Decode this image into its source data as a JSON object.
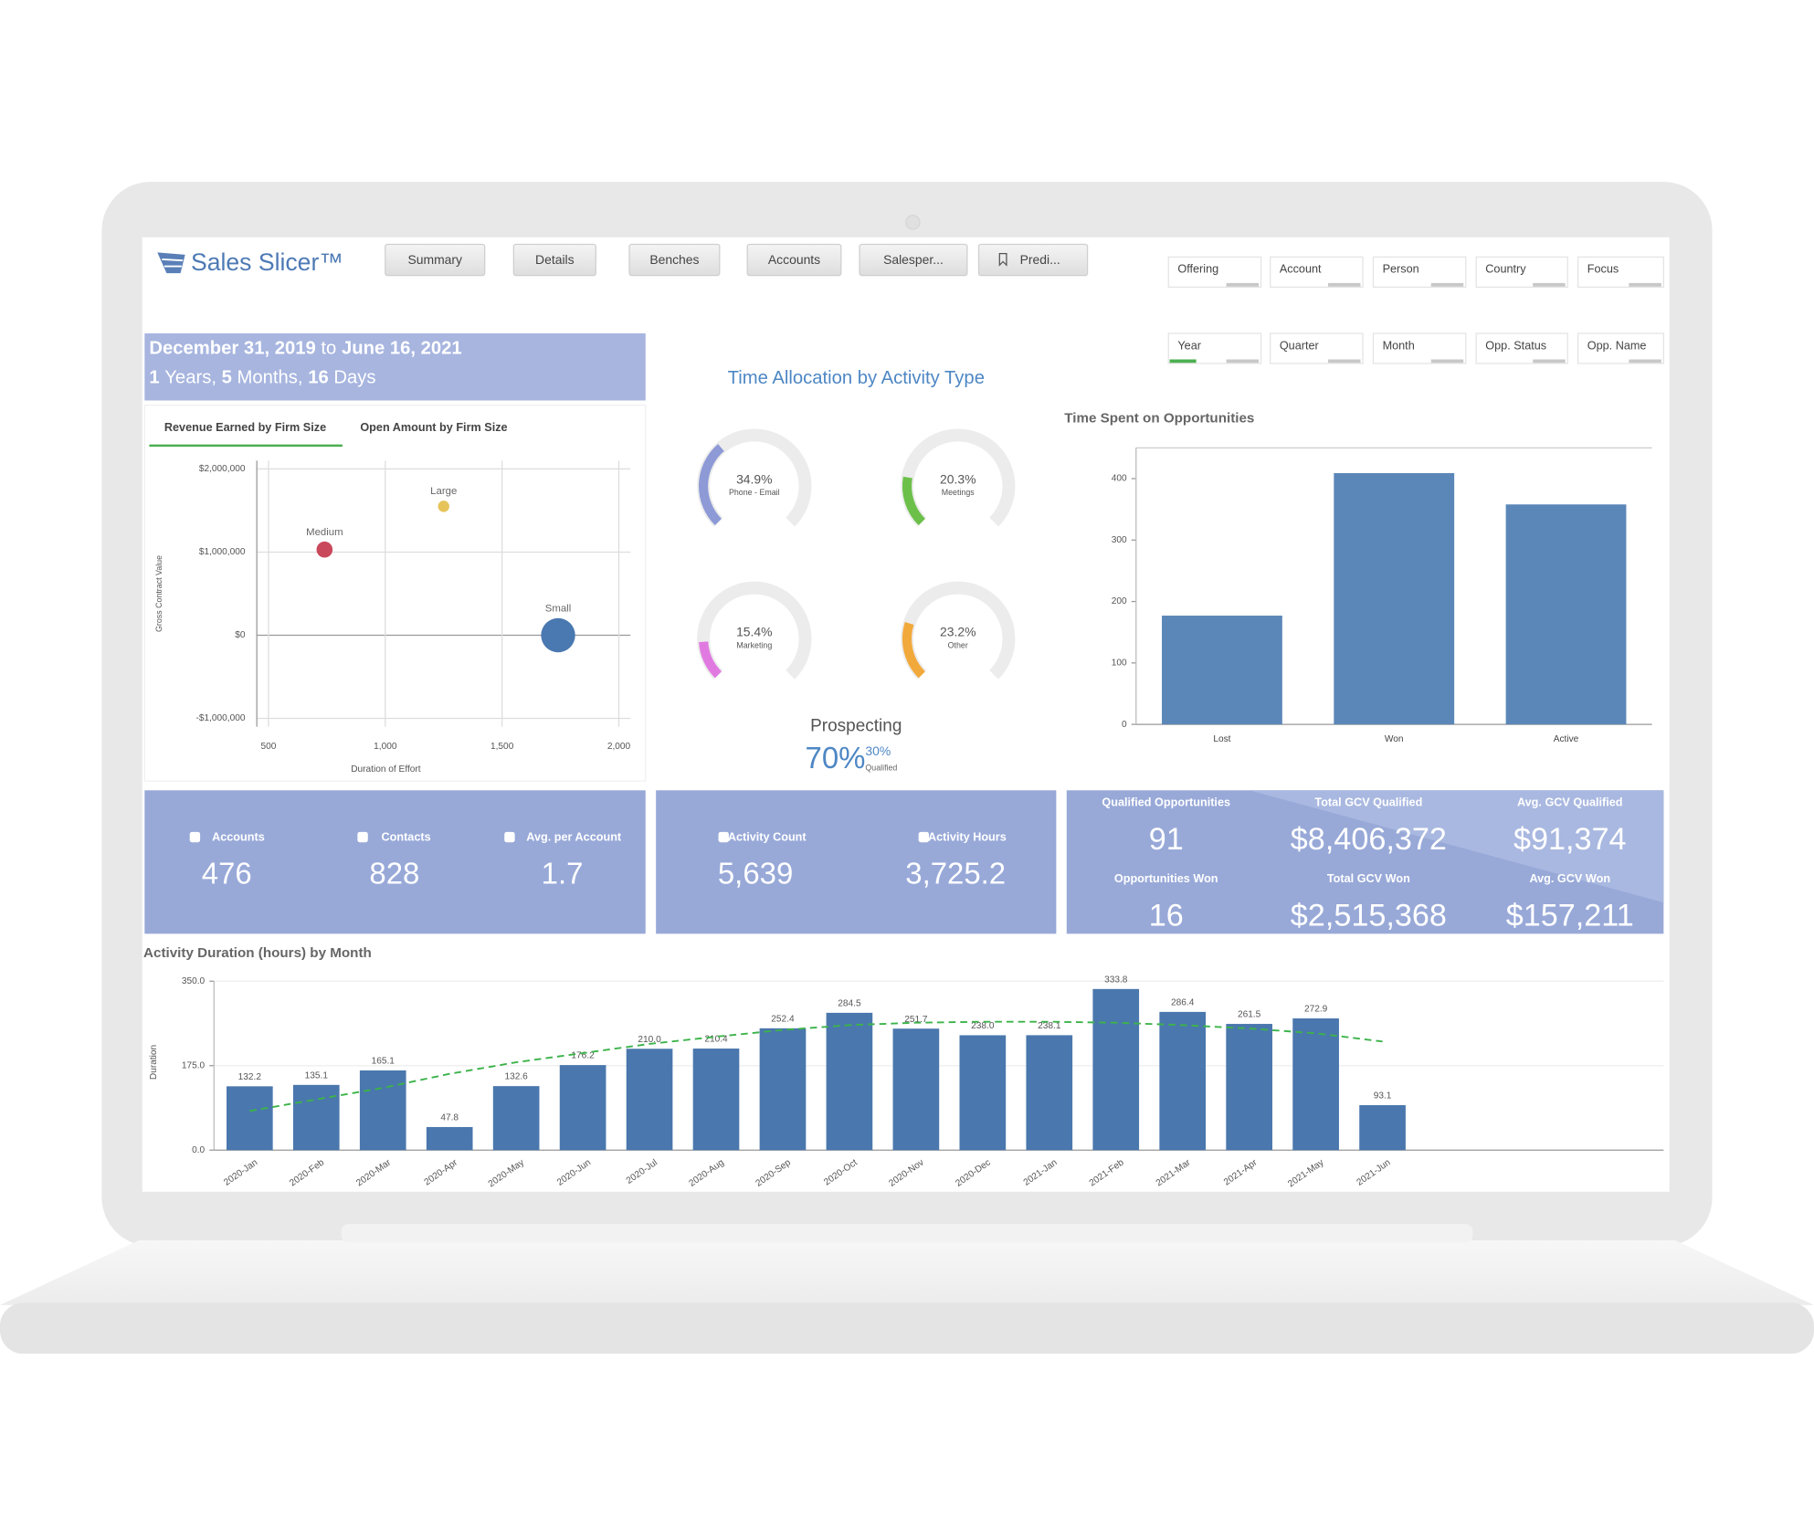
{
  "header": {
    "logo": "Sales Slicer™"
  },
  "nav": [
    "Summary",
    "Details",
    "Benches",
    "Accounts",
    "Salesper...",
    "Predi..."
  ],
  "filters": {
    "row1": [
      "Offering",
      "Account",
      "Person",
      "Country",
      "Focus"
    ],
    "row2": [
      "Year",
      "Quarter",
      "Month",
      "Opp. Status",
      "Opp. Name"
    ]
  },
  "date_range": {
    "start": "December 31, 2019",
    "connector": "to",
    "end": "June 16, 2021",
    "duration": [
      {
        "number": "1",
        "unit": "Years,"
      },
      {
        "number": "5",
        "unit": "Months,"
      },
      {
        "number": "16",
        "unit": "Days"
      }
    ]
  },
  "tabs": [
    "Revenue Earned by Firm Size",
    "Open Amount by Firm Size"
  ],
  "prospecting": {
    "label": "Prospecting",
    "value": "70%",
    "qualified": "30%",
    "qualified_text": "Qualified"
  },
  "kpi_panels": [
    [
      {
        "label": "Accounts",
        "value": "476"
      },
      {
        "label": "Contacts",
        "value": "828"
      },
      {
        "label": "Avg. per Account",
        "value": "1.7"
      }
    ],
    [
      {
        "label": "Activity Count",
        "value": "5,639"
      },
      {
        "label": "Activity Hours",
        "value": "3,725.2"
      }
    ],
    [
      {
        "label": "Qualified Opportunities",
        "value": "91"
      },
      {
        "label": "Total GCV Qualified",
        "value": "$8,406,372"
      },
      {
        "label": "Avg. GCV Qualified",
        "value": "$91,374"
      },
      {
        "label": "Opportunities Won",
        "value": "16"
      },
      {
        "label": "Total GCV Won",
        "value": "$2,515,368"
      },
      {
        "label": "Avg. GCV Won",
        "value": "$157,211"
      }
    ]
  ],
  "chart_data": [
    {
      "type": "scatter",
      "xlabel": "Duration of Effort",
      "ylabel": "Gross Contract Value",
      "xlim": [
        450,
        2050
      ],
      "xticks": [
        500,
        {
          "value": 1000,
          "label": "1,000"
        },
        {
          "value": 1500,
          "label": "1,500"
        },
        {
          "value": 2000,
          "label": "2,000"
        }
      ],
      "ylim": [
        -1100000,
        2100000
      ],
      "yticks": [
        {
          "value": -1000000,
          "label": "-$1,000,000"
        },
        {
          "value": 0,
          "label": "$0"
        },
        {
          "value": 1000000,
          "label": "$1,000,000"
        },
        {
          "value": 2000000,
          "label": "$2,000,000"
        }
      ],
      "grid": true,
      "series": [
        {
          "name": "Medium",
          "color": "#c9485b",
          "x": [
            740
          ],
          "values": [
            1030000
          ],
          "sizes": [
            10
          ]
        },
        {
          "name": "Large",
          "color": "#e6c45a",
          "x": [
            1250
          ],
          "values": [
            1550000
          ],
          "sizes": [
            5
          ]
        },
        {
          "name": "Small",
          "color": "#4a78b0",
          "x": [
            1740
          ],
          "values": [
            0
          ],
          "sizes": [
            45
          ]
        }
      ]
    },
    {
      "type": "gauge",
      "title": "Time Allocation by Activity Type",
      "categories": [
        "Phone - Email",
        "Meetings",
        "Marketing",
        "Other"
      ],
      "values": [
        34.9,
        20.3,
        15.4,
        23.2
      ],
      "value_labels": [
        "34.9%",
        "20.3%",
        "15.4%",
        "23.2%"
      ],
      "ylim": [
        0,
        100
      ],
      "colors": [
        "#8d9ad6",
        "#6cc04a",
        "#e07ae0",
        "#f2a93b"
      ]
    },
    {
      "type": "bar",
      "title": "Time Spent on Opportunities",
      "categories": [
        "Lost",
        "Won",
        "Active"
      ],
      "values": [
        177,
        409,
        358
      ],
      "color": "#5b87b8",
      "ylim": [
        0,
        450
      ],
      "yticks": [
        0,
        100,
        200,
        300,
        400
      ]
    },
    {
      "type": "bar",
      "title": "Activity Duration (hours) by Month",
      "ylabel": "Duration",
      "categories": [
        "2020-Jan",
        "2020-Feb",
        "2020-Mar",
        "2020-Apr",
        "2020-May",
        "2020-Jun",
        "2020-Jul",
        "2020-Aug",
        "2020-Sep",
        "2020-Oct",
        "2020-Nov",
        "2020-Dec",
        "2021-Jan",
        "2021-Feb",
        "2021-Mar",
        "2021-Apr",
        "2021-May",
        "2021-Jun"
      ],
      "values": [
        132.2,
        135.1,
        165.1,
        47.8,
        132.6,
        176.2,
        210.0,
        210.4,
        252.4,
        284.5,
        251.7,
        238.0,
        238.1,
        333.8,
        286.4,
        261.5,
        272.9,
        93.1
      ],
      "value_labels": [
        "132.2",
        "135.1",
        "165.1",
        "47.8",
        "132.6",
        "176.2",
        "210.0",
        "210.4",
        "252.4",
        "284.5",
        "251.7",
        "238.0",
        "238.1",
        "333.8",
        "286.4",
        "261.5",
        "272.9",
        "93.1"
      ],
      "color": "#4a77ad",
      "trend": {
        "color": "#3cb34a",
        "values": [
          81,
          105,
          129,
          158,
          182,
          201,
          220,
          235,
          249,
          259,
          264,
          266,
          266,
          264,
          259,
          252,
          242,
          225
        ]
      },
      "ylim": [
        0,
        350
      ],
      "yticks": [
        {
          "value": 0,
          "label": "0.0"
        },
        {
          "value": 175,
          "label": "175.0"
        },
        {
          "value": 350,
          "label": "350.0"
        }
      ]
    }
  ]
}
